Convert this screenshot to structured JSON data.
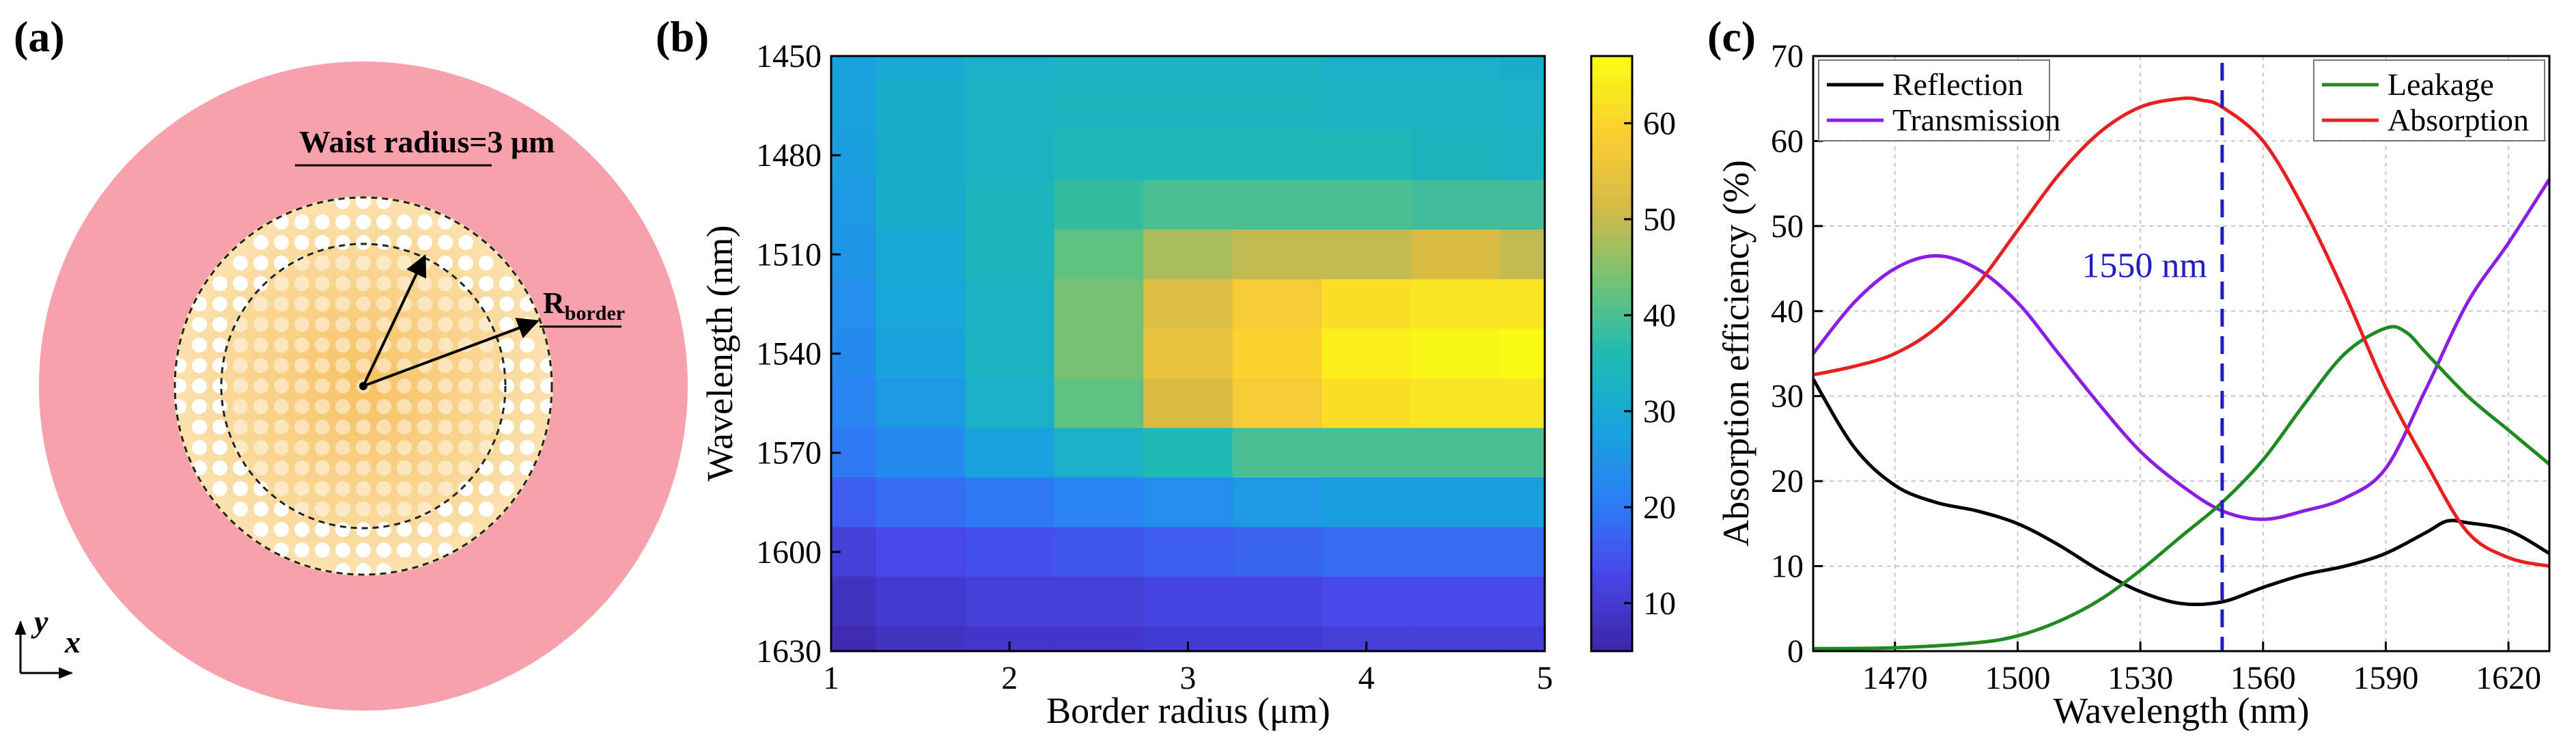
{
  "panels": {
    "a": {
      "letter": "(a)",
      "waist_label": "Waist radius=3 μm",
      "rborder_main": "R",
      "rborder_sub": "border",
      "axis_y": "y",
      "axis_x": "x",
      "colors": {
        "outer": "#f7a1ad",
        "hole": "#ffffff",
        "core_center": "#f7c060",
        "core_edge": "#fbe2b0"
      }
    },
    "b": {
      "letter": "(b)"
    },
    "c": {
      "letter": "(c)"
    }
  },
  "chart_data": [
    {
      "type": "heatmap",
      "panel": "b",
      "xlabel": "Border radius (μm)",
      "ylabel": "Wavelength (nm)",
      "xlim": [
        1,
        5
      ],
      "ylim": [
        1450,
        1630
      ],
      "x_ticks": [
        1,
        2,
        3,
        4,
        5
      ],
      "y_ticks": [
        1450,
        1480,
        1510,
        1540,
        1570,
        1600,
        1630
      ],
      "y_inverted": true,
      "colorbar": {
        "ticks": [
          10,
          20,
          30,
          40,
          50,
          60
        ],
        "min": 5,
        "max": 67,
        "colormap": "parula"
      },
      "x": [
        1,
        1.5,
        2,
        2.5,
        3,
        3.5,
        4,
        4.5,
        5
      ],
      "y": [
        1450,
        1465,
        1480,
        1495,
        1510,
        1525,
        1540,
        1555,
        1570,
        1585,
        1600,
        1615,
        1630
      ],
      "z": [
        [
          28,
          30,
          32,
          33,
          33,
          33,
          32,
          32,
          31
        ],
        [
          28,
          31,
          33,
          34,
          34,
          34,
          33,
          33,
          32
        ],
        [
          27,
          31,
          33,
          35,
          35,
          35,
          35,
          34,
          33
        ],
        [
          26,
          31,
          34,
          38,
          40,
          40,
          40,
          39,
          39
        ],
        [
          25,
          30,
          34,
          42,
          48,
          50,
          50,
          52,
          50
        ],
        [
          24,
          29,
          33,
          44,
          53,
          58,
          62,
          63,
          63
        ],
        [
          23,
          28,
          33,
          44,
          55,
          60,
          65,
          66,
          67
        ],
        [
          22,
          26,
          32,
          42,
          52,
          58,
          62,
          63,
          63
        ],
        [
          20,
          23,
          28,
          32,
          36,
          40,
          40,
          40,
          40
        ],
        [
          16,
          18,
          20,
          22,
          24,
          26,
          27,
          27,
          27
        ],
        [
          11,
          13,
          14,
          15,
          16,
          17,
          18,
          18,
          18
        ],
        [
          8,
          10,
          11,
          11,
          12,
          12,
          13,
          13,
          13
        ],
        [
          6,
          8,
          9,
          9,
          10,
          10,
          11,
          11,
          11
        ]
      ]
    },
    {
      "type": "line",
      "panel": "c",
      "xlabel": "Wavelength (nm)",
      "ylabel": "Absorption efficiency (%)",
      "xlim": [
        1450,
        1630
      ],
      "ylim": [
        0,
        70
      ],
      "x_ticks": [
        1470,
        1500,
        1530,
        1560,
        1590,
        1620
      ],
      "y_ticks": [
        0,
        10,
        20,
        30,
        40,
        50,
        60,
        70
      ],
      "grid": true,
      "legend_left": [
        "Reflection",
        "Transmission"
      ],
      "legend_right": [
        "Leakage",
        "Absorption"
      ],
      "annotation": {
        "text": "1550 nm",
        "x": 1550,
        "color": "#1f1fbf"
      },
      "series": [
        {
          "name": "Reflection",
          "color": "#000000",
          "x": [
            1450,
            1460,
            1470,
            1480,
            1490,
            1500,
            1510,
            1520,
            1530,
            1540,
            1550,
            1560,
            1570,
            1580,
            1590,
            1600,
            1605,
            1610,
            1620,
            1630
          ],
          "y": [
            32,
            24,
            19.5,
            17.5,
            16.5,
            15,
            12.5,
            9.5,
            7,
            5.6,
            5.8,
            7.5,
            9,
            10,
            11.5,
            14,
            15.3,
            15.1,
            14.2,
            11.5
          ]
        },
        {
          "name": "Transmission",
          "color": "#8b1ee6",
          "x": [
            1450,
            1460,
            1470,
            1480,
            1490,
            1500,
            1510,
            1520,
            1530,
            1540,
            1550,
            1560,
            1570,
            1580,
            1590,
            1600,
            1610,
            1620,
            1630
          ],
          "y": [
            35,
            41,
            45,
            46.5,
            45,
            41,
            35,
            29,
            23.5,
            19.5,
            16.5,
            15.5,
            16.5,
            18,
            21.5,
            31,
            41,
            48,
            55.5
          ]
        },
        {
          "name": "Leakage",
          "color": "#1f8a1f",
          "x": [
            1450,
            1470,
            1490,
            1500,
            1510,
            1520,
            1530,
            1540,
            1550,
            1560,
            1570,
            1580,
            1590,
            1595,
            1600,
            1610,
            1620,
            1630
          ],
          "y": [
            0.3,
            0.4,
            1,
            1.8,
            3.5,
            6,
            9.5,
            13.5,
            17.5,
            22.5,
            29,
            35,
            38,
            37.5,
            35,
            30,
            26,
            22
          ]
        },
        {
          "name": "Absorption",
          "color": "#e81f1f",
          "x": [
            1450,
            1460,
            1470,
            1480,
            1490,
            1500,
            1510,
            1520,
            1530,
            1540,
            1545,
            1550,
            1560,
            1570,
            1580,
            1590,
            1600,
            1610,
            1620,
            1630
          ],
          "y": [
            32.5,
            33.5,
            35,
            38,
            43,
            49.5,
            56,
            61,
            64,
            65,
            64.8,
            64,
            60,
            52,
            42,
            31,
            22,
            14,
            11,
            10
          ]
        }
      ]
    }
  ]
}
